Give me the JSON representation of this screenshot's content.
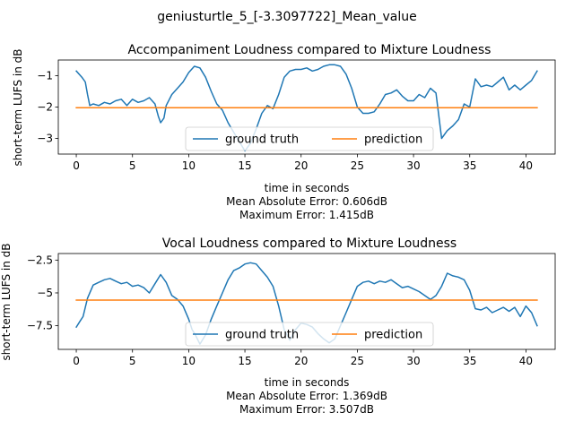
{
  "figure_title": "geniusturtle_5_[-3.3097722]_Mean_value",
  "colors": {
    "ground_truth": "#1f77b4",
    "prediction": "#ff7f0e"
  },
  "chart_data": [
    {
      "type": "line",
      "title": "Accompaniment Loudness compared to Mixture Loudness",
      "xlabel": "time in seconds",
      "ylabel": "short-term LUFS in dB",
      "xlim": [
        -1.6,
        42.6
      ],
      "ylim": [
        -3.5,
        -0.5
      ],
      "xticks": [
        0,
        5,
        10,
        15,
        20,
        25,
        30,
        35,
        40
      ],
      "yticks": [
        -3,
        -2,
        -1
      ],
      "metrics": [
        "Mean Absolute Error: 0.606dB",
        "Maximum Error: 1.415dB"
      ],
      "legend": {
        "loc": "lower center",
        "ncol": 2
      },
      "series": [
        {
          "name": "ground truth",
          "color": "#1f77b4",
          "x": [
            0,
            0.5,
            0.8,
            1.0,
            1.2,
            1.5,
            2.0,
            2.5,
            3.0,
            3.5,
            4.0,
            4.5,
            5.0,
            5.5,
            6.0,
            6.5,
            7.0,
            7.3,
            7.5,
            7.8,
            8.0,
            8.5,
            9.0,
            9.5,
            10.0,
            10.5,
            11.0,
            11.5,
            12.0,
            12.5,
            13.0,
            13.5,
            14.0,
            14.5,
            15.0,
            15.5,
            16.0,
            16.5,
            17.0,
            17.5,
            18.0,
            18.5,
            19.0,
            19.5,
            20.0,
            20.5,
            21.0,
            21.5,
            22.0,
            22.5,
            23.0,
            23.5,
            24.0,
            24.5,
            25.0,
            25.5,
            26.0,
            26.5,
            27.0,
            27.5,
            28.0,
            28.5,
            29.0,
            29.5,
            30.0,
            30.5,
            31.0,
            31.5,
            32.0,
            32.5,
            33.0,
            33.5,
            34.0,
            34.5,
            35.0,
            35.5,
            36.0,
            36.5,
            37.0,
            37.5,
            38.0,
            38.5,
            39.0,
            39.5,
            40.0,
            40.5,
            41.0
          ],
          "y": [
            -0.85,
            -1.05,
            -1.2,
            -1.6,
            -1.95,
            -1.9,
            -1.95,
            -1.85,
            -1.9,
            -1.8,
            -1.75,
            -1.95,
            -1.75,
            -1.85,
            -1.8,
            -1.7,
            -1.9,
            -2.3,
            -2.5,
            -2.35,
            -1.95,
            -1.6,
            -1.4,
            -1.2,
            -0.9,
            -0.7,
            -0.75,
            -1.05,
            -1.5,
            -1.9,
            -2.1,
            -2.5,
            -2.8,
            -3.1,
            -3.4,
            -3.15,
            -2.7,
            -2.2,
            -1.95,
            -2.05,
            -1.6,
            -1.05,
            -0.85,
            -0.8,
            -0.8,
            -0.75,
            -0.85,
            -0.8,
            -0.7,
            -0.65,
            -0.65,
            -0.7,
            -0.95,
            -1.4,
            -2.0,
            -2.2,
            -2.2,
            -2.15,
            -1.9,
            -1.6,
            -1.55,
            -1.45,
            -1.65,
            -1.8,
            -1.8,
            -1.6,
            -1.7,
            -1.4,
            -1.55,
            -3.0,
            -2.75,
            -2.6,
            -2.4,
            -1.9,
            -2.0,
            -1.1,
            -1.35,
            -1.3,
            -1.35,
            -1.2,
            -1.05,
            -1.45,
            -1.3,
            -1.45,
            -1.3,
            -1.15,
            -0.85
          ]
        },
        {
          "name": "prediction",
          "color": "#ff7f0e",
          "x": [
            0,
            41
          ],
          "y": [
            -2.02,
            -2.02
          ]
        }
      ]
    },
    {
      "type": "line",
      "title": "Vocal Loudness compared to Mixture Loudness",
      "xlabel": "time in seconds",
      "ylabel": "short-term LUFS in dB",
      "xlim": [
        -1.6,
        42.6
      ],
      "ylim": [
        -9.3,
        -2.0
      ],
      "xticks": [
        0,
        5,
        10,
        15,
        20,
        25,
        30,
        35,
        40
      ],
      "yticks": [
        -7.5,
        -5.0,
        -2.5
      ],
      "metrics": [
        "Mean Absolute Error: 1.369dB",
        "Maximum Error: 3.507dB"
      ],
      "legend": {
        "loc": "lower center",
        "ncol": 2
      },
      "series": [
        {
          "name": "ground truth",
          "color": "#1f77b4",
          "x": [
            0,
            0.3,
            0.6,
            1.0,
            1.5,
            2.0,
            2.5,
            3.0,
            3.5,
            4.0,
            4.5,
            5.0,
            5.5,
            6.0,
            6.5,
            7.0,
            7.5,
            8.0,
            8.5,
            9.0,
            9.5,
            10.0,
            10.3,
            10.6,
            11.0,
            11.5,
            12.0,
            12.5,
            13.0,
            13.5,
            14.0,
            14.5,
            15.0,
            15.5,
            16.0,
            16.5,
            17.0,
            17.5,
            18.0,
            18.5,
            19.0,
            19.5,
            20.0,
            20.5,
            21.0,
            21.5,
            22.0,
            22.5,
            23.0,
            23.5,
            24.0,
            24.5,
            25.0,
            25.5,
            26.0,
            26.5,
            27.0,
            27.5,
            28.0,
            28.5,
            29.0,
            29.5,
            30.0,
            30.5,
            31.0,
            31.5,
            32.0,
            32.5,
            33.0,
            33.5,
            34.0,
            34.5,
            35.0,
            35.5,
            36.0,
            36.5,
            37.0,
            37.5,
            38.0,
            38.5,
            39.0,
            39.5,
            40.0,
            40.5,
            41.0
          ],
          "y": [
            -7.6,
            -7.2,
            -6.8,
            -5.4,
            -4.4,
            -4.2,
            -4.0,
            -3.9,
            -4.1,
            -4.3,
            -4.2,
            -4.5,
            -4.4,
            -4.6,
            -5.0,
            -4.3,
            -3.6,
            -4.2,
            -5.2,
            -5.5,
            -6.0,
            -7.0,
            -7.8,
            -8.2,
            -8.9,
            -8.2,
            -7.0,
            -6.0,
            -5.0,
            -4.0,
            -3.3,
            -3.1,
            -2.8,
            -2.7,
            -2.8,
            -3.3,
            -3.8,
            -4.5,
            -6.0,
            -7.8,
            -8.6,
            -7.8,
            -7.3,
            -7.4,
            -7.6,
            -8.1,
            -8.5,
            -8.8,
            -8.5,
            -7.5,
            -6.5,
            -5.5,
            -4.5,
            -4.2,
            -4.1,
            -4.3,
            -4.1,
            -4.2,
            -4.0,
            -4.3,
            -4.6,
            -4.5,
            -4.7,
            -4.9,
            -5.2,
            -5.5,
            -5.2,
            -4.5,
            -3.5,
            -3.7,
            -3.8,
            -4.0,
            -4.8,
            -6.2,
            -6.3,
            -6.1,
            -6.5,
            -6.3,
            -6.1,
            -6.4,
            -6.1,
            -6.8,
            -6.0,
            -6.5,
            -7.5
          ]
        },
        {
          "name": "prediction",
          "color": "#ff7f0e",
          "x": [
            0,
            41
          ],
          "y": [
            -5.55,
            -5.55
          ]
        }
      ]
    }
  ]
}
